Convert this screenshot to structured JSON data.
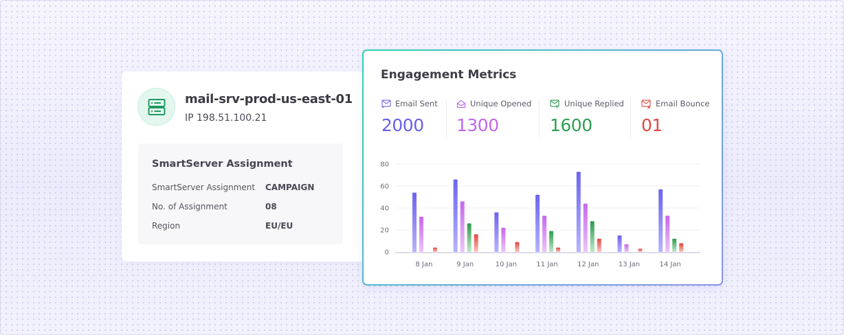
{
  "server": {
    "icon": "server-icon",
    "name": "mail-srv-prod-us-east-01",
    "ip": "IP 198.51.100.21",
    "assignment": {
      "title": "SmartServer Assignment",
      "rows": [
        {
          "label": "SmartServer Assignment",
          "value": "CAMPAIGN"
        },
        {
          "label": "No. of Assignment",
          "value": "08"
        },
        {
          "label": "Region",
          "value": "EU/EU"
        }
      ]
    }
  },
  "metrics": {
    "title": "Engagement Metrics",
    "stats": [
      {
        "label": "Email Sent",
        "value": "2000",
        "icon": "mail-sent-icon",
        "color": "#6a5fe8"
      },
      {
        "label": "Unique Opened",
        "value": "1300",
        "icon": "mail-open-icon",
        "color": "#c366ea"
      },
      {
        "label": "Unique Replied",
        "value": "1600",
        "icon": "mail-reply-icon",
        "color": "#2f9e52"
      },
      {
        "label": "Email Bounce",
        "value": "01",
        "icon": "mail-bounce-icon",
        "color": "#dc4b43"
      }
    ]
  },
  "chart_data": {
    "type": "bar",
    "title": "",
    "xlabel": "",
    "ylabel": "",
    "ylim": [
      0,
      80
    ],
    "yticks": [
      0,
      20,
      40,
      60,
      80
    ],
    "grid": true,
    "categories": [
      "8 Jan",
      "9 Jan",
      "10 Jan",
      "11 Jan",
      "12 Jan",
      "13 Jan",
      "14 Jan"
    ],
    "series": [
      {
        "name": "Email Sent",
        "color_top": "#6c63f0",
        "color_bottom": "#b7b4fb",
        "values": [
          54,
          66,
          36,
          52,
          73,
          15,
          57
        ]
      },
      {
        "name": "Unique Opened",
        "color_top": "#c766ee",
        "color_bottom": "#ecc6f8",
        "values": [
          32,
          46,
          22,
          33,
          44,
          7,
          33
        ]
      },
      {
        "name": "Unique Replied",
        "color_top": "#2f9a4e",
        "color_bottom": "#bfe8cb",
        "values": [
          0,
          26,
          0,
          19,
          28,
          0,
          12
        ]
      },
      {
        "name": "Email Bounce",
        "color_top": "#e0473f",
        "color_bottom": "#fbc5c0",
        "values": [
          4,
          16,
          9,
          4,
          12,
          3,
          8
        ]
      }
    ]
  }
}
